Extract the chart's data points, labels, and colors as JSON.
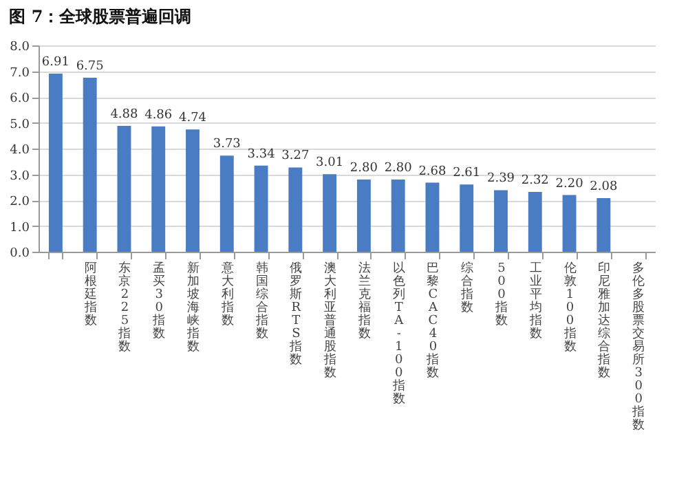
{
  "chart_data": {
    "type": "bar",
    "title": "图 7：全球股票普遍回调",
    "categories": [
      null,
      "阿根廷指数",
      "东京225指数",
      "孟买30指数",
      "新加坡海峡指数",
      "意大利指数",
      "韩国综合指数",
      "俄罗斯RTS指数",
      "澳大利亚普通股指数",
      "法兰克福指数",
      "以色列TA-100指数",
      "巴黎CAC40指数",
      "综合指数",
      "500指数",
      "工业平均指数",
      "伦敦100指数",
      "印尼雅加达综合指数",
      "多伦多股票交易所300指数"
    ],
    "values": [
      6.91,
      6.75,
      4.88,
      4.86,
      4.74,
      3.73,
      3.34,
      3.27,
      3.01,
      2.8,
      2.8,
      2.68,
      2.61,
      2.39,
      2.32,
      2.2,
      2.08,
      null
    ],
    "color": "#4a7cc4",
    "ylim": [
      0,
      8
    ],
    "yticks": [
      {
        "value": 0,
        "label": "0.0"
      },
      {
        "value": 1,
        "label": "1.0"
      },
      {
        "value": 2,
        "label": "2.0"
      },
      {
        "value": 3,
        "label": "3.0"
      },
      {
        "value": 4,
        "label": "4.0"
      },
      {
        "value": 5,
        "label": "5.0"
      },
      {
        "value": 6,
        "label": "6.0"
      },
      {
        "value": 7,
        "label": "7.0"
      },
      {
        "value": 8,
        "label": "8.0"
      }
    ],
    "value_labels": [
      "6.91",
      "6.75",
      "4.88",
      "4.86",
      "4.74",
      "3.73",
      "3.34",
      "3.27",
      "3.01",
      "2.80",
      "2.80",
      "2.68",
      "2.61",
      "2.39",
      "2.32",
      "2.20",
      "2.08",
      null
    ],
    "grid": "y"
  }
}
